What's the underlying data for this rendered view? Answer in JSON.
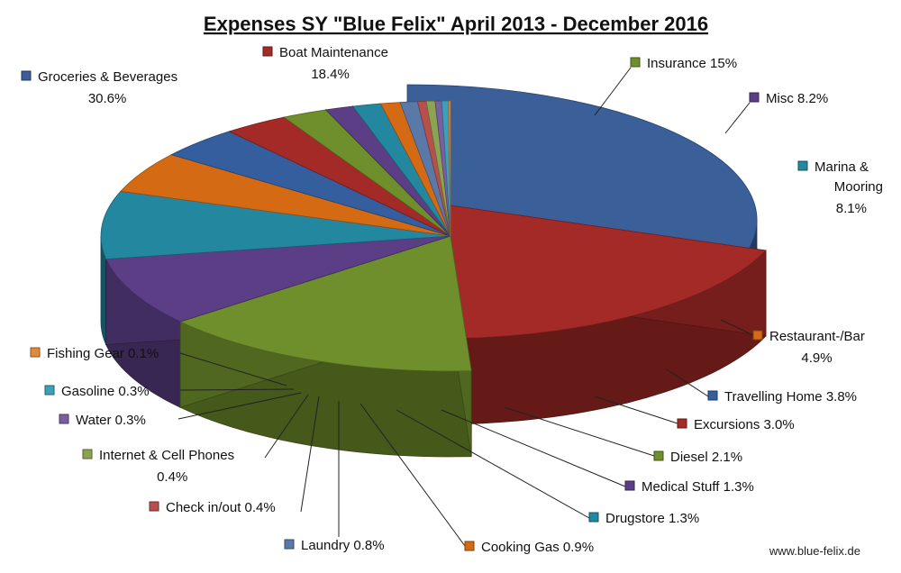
{
  "chart_data": {
    "type": "pie",
    "title": "Expenses SY \"Blue Felix\" April 2013 - December 2016",
    "source": "www.blue-felix.de",
    "slices": [
      {
        "label": "Groceries & Beverages",
        "value": 30.6,
        "value_label": "30.6%",
        "color": "#3a5f99"
      },
      {
        "label": "Boat Maintenance",
        "value": 18.4,
        "value_label": "18.4%",
        "color": "#a32a26"
      },
      {
        "label": "Insurance",
        "value": 15.0,
        "value_label": "15%",
        "color": "#6f8f2c"
      },
      {
        "label": "Misc",
        "value": 8.2,
        "value_label": "8.2%",
        "color": "#5b3e86"
      },
      {
        "label": "Marina & Mooring",
        "value": 8.1,
        "value_label": "8.1%",
        "color": "#2487a0"
      },
      {
        "label": "Restaurant-/Bar",
        "value": 4.9,
        "value_label": "4.9%",
        "color": "#d46a13"
      },
      {
        "label": "Travelling Home",
        "value": 3.8,
        "value_label": "3.8%",
        "color": "#345e9e"
      },
      {
        "label": "Excursions",
        "value": 3.0,
        "value_label": "3.0%",
        "color": "#a32a26"
      },
      {
        "label": "Diesel",
        "value": 2.1,
        "value_label": "2.1%",
        "color": "#6f8f2c"
      },
      {
        "label": "Medical Stuff",
        "value": 1.3,
        "value_label": "1.3%",
        "color": "#5b3e86"
      },
      {
        "label": "Drugstore",
        "value": 1.3,
        "value_label": "1.3%",
        "color": "#2487a0"
      },
      {
        "label": "Cooking Gas",
        "value": 0.9,
        "value_label": "0.9%",
        "color": "#d46a13"
      },
      {
        "label": "Laundry",
        "value": 0.8,
        "value_label": "0.8%",
        "color": "#5a78a8"
      },
      {
        "label": "Check in/out",
        "value": 0.4,
        "value_label": "0.4%",
        "color": "#b5504c"
      },
      {
        "label": "Internet & Cell Phones",
        "value": 0.4,
        "value_label": "0.4%",
        "color": "#8aa452"
      },
      {
        "label": "Water",
        "value": 0.3,
        "value_label": "0.3%",
        "color": "#7a5fa0"
      },
      {
        "label": "Gasoline",
        "value": 0.3,
        "value_label": "0.3%",
        "color": "#3d9fb8"
      },
      {
        "label": "Fishing Gear",
        "value": 0.1,
        "value_label": "0.1%",
        "color": "#e08a3c"
      }
    ]
  }
}
